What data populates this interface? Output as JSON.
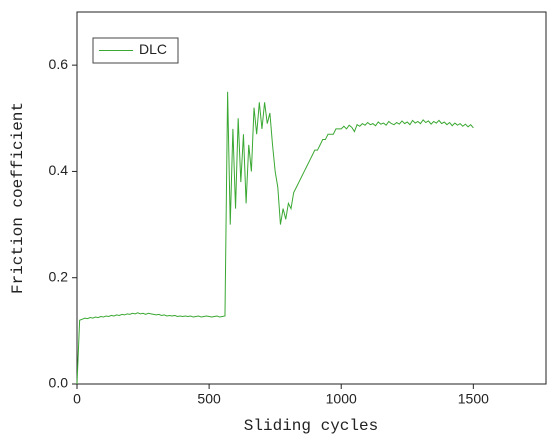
{
  "chart_data": {
    "type": "line",
    "x_label": "Sliding cycles",
    "y_label": "Friction coefficient",
    "xlim": [
      0,
      1775
    ],
    "ylim": [
      0,
      0.7
    ],
    "xticks": [
      0,
      500,
      1000,
      1500
    ],
    "yticks": [
      {
        "value": 0,
        "label": "0.0"
      },
      0.2,
      0.4,
      0.6
    ],
    "legend": "top-left",
    "x": [
      0,
      10,
      20,
      30,
      40,
      50,
      60,
      70,
      80,
      90,
      100,
      110,
      120,
      130,
      140,
      150,
      160,
      170,
      180,
      190,
      200,
      210,
      220,
      230,
      240,
      250,
      260,
      270,
      280,
      290,
      300,
      310,
      320,
      330,
      340,
      350,
      360,
      370,
      380,
      390,
      400,
      410,
      420,
      430,
      440,
      450,
      460,
      470,
      480,
      490,
      500,
      510,
      520,
      530,
      540,
      550,
      560,
      570,
      580,
      590,
      600,
      610,
      620,
      630,
      640,
      650,
      660,
      670,
      680,
      690,
      700,
      710,
      720,
      730,
      740,
      750,
      760,
      770,
      780,
      790,
      800,
      810,
      820,
      830,
      840,
      850,
      860,
      870,
      880,
      890,
      900,
      910,
      920,
      930,
      940,
      950,
      960,
      970,
      980,
      990,
      1000,
      1010,
      1020,
      1030,
      1040,
      1050,
      1060,
      1070,
      1080,
      1090,
      1100,
      1110,
      1120,
      1130,
      1140,
      1150,
      1160,
      1170,
      1180,
      1190,
      1200,
      1210,
      1220,
      1230,
      1240,
      1250,
      1260,
      1270,
      1280,
      1290,
      1300,
      1310,
      1320,
      1330,
      1340,
      1350,
      1360,
      1370,
      1380,
      1390,
      1400,
      1410,
      1420,
      1430,
      1440,
      1450,
      1460,
      1470,
      1480,
      1490,
      1500
    ],
    "series": [
      {
        "name": "DLC",
        "color": "#3aa832",
        "values": [
          0.0,
          0.12,
          0.122,
          0.124,
          0.123,
          0.125,
          0.124,
          0.126,
          0.125,
          0.127,
          0.126,
          0.128,
          0.127,
          0.129,
          0.128,
          0.13,
          0.129,
          0.131,
          0.13,
          0.132,
          0.131,
          0.133,
          0.132,
          0.134,
          0.132,
          0.133,
          0.131,
          0.133,
          0.132,
          0.131,
          0.13,
          0.131,
          0.129,
          0.13,
          0.128,
          0.129,
          0.128,
          0.129,
          0.127,
          0.128,
          0.127,
          0.128,
          0.127,
          0.128,
          0.126,
          0.127,
          0.128,
          0.126,
          0.127,
          0.128,
          0.127,
          0.126,
          0.127,
          0.128,
          0.126,
          0.127,
          0.128,
          0.55,
          0.3,
          0.48,
          0.33,
          0.5,
          0.38,
          0.47,
          0.34,
          0.45,
          0.4,
          0.52,
          0.47,
          0.53,
          0.48,
          0.53,
          0.49,
          0.51,
          0.45,
          0.4,
          0.37,
          0.3,
          0.33,
          0.31,
          0.34,
          0.33,
          0.36,
          0.37,
          0.38,
          0.39,
          0.4,
          0.41,
          0.42,
          0.43,
          0.44,
          0.44,
          0.45,
          0.46,
          0.46,
          0.47,
          0.47,
          0.47,
          0.48,
          0.48,
          0.48,
          0.485,
          0.48,
          0.487,
          0.483,
          0.475,
          0.488,
          0.485,
          0.49,
          0.487,
          0.492,
          0.488,
          0.49,
          0.486,
          0.493,
          0.489,
          0.491,
          0.487,
          0.494,
          0.49,
          0.488,
          0.492,
          0.489,
          0.495,
          0.49,
          0.493,
          0.488,
          0.496,
          0.491,
          0.494,
          0.49,
          0.497,
          0.492,
          0.495,
          0.489,
          0.494,
          0.491,
          0.496,
          0.49,
          0.493,
          0.488,
          0.492,
          0.486,
          0.491,
          0.487,
          0.49,
          0.485,
          0.489,
          0.484,
          0.488,
          0.482
        ]
      }
    ]
  }
}
